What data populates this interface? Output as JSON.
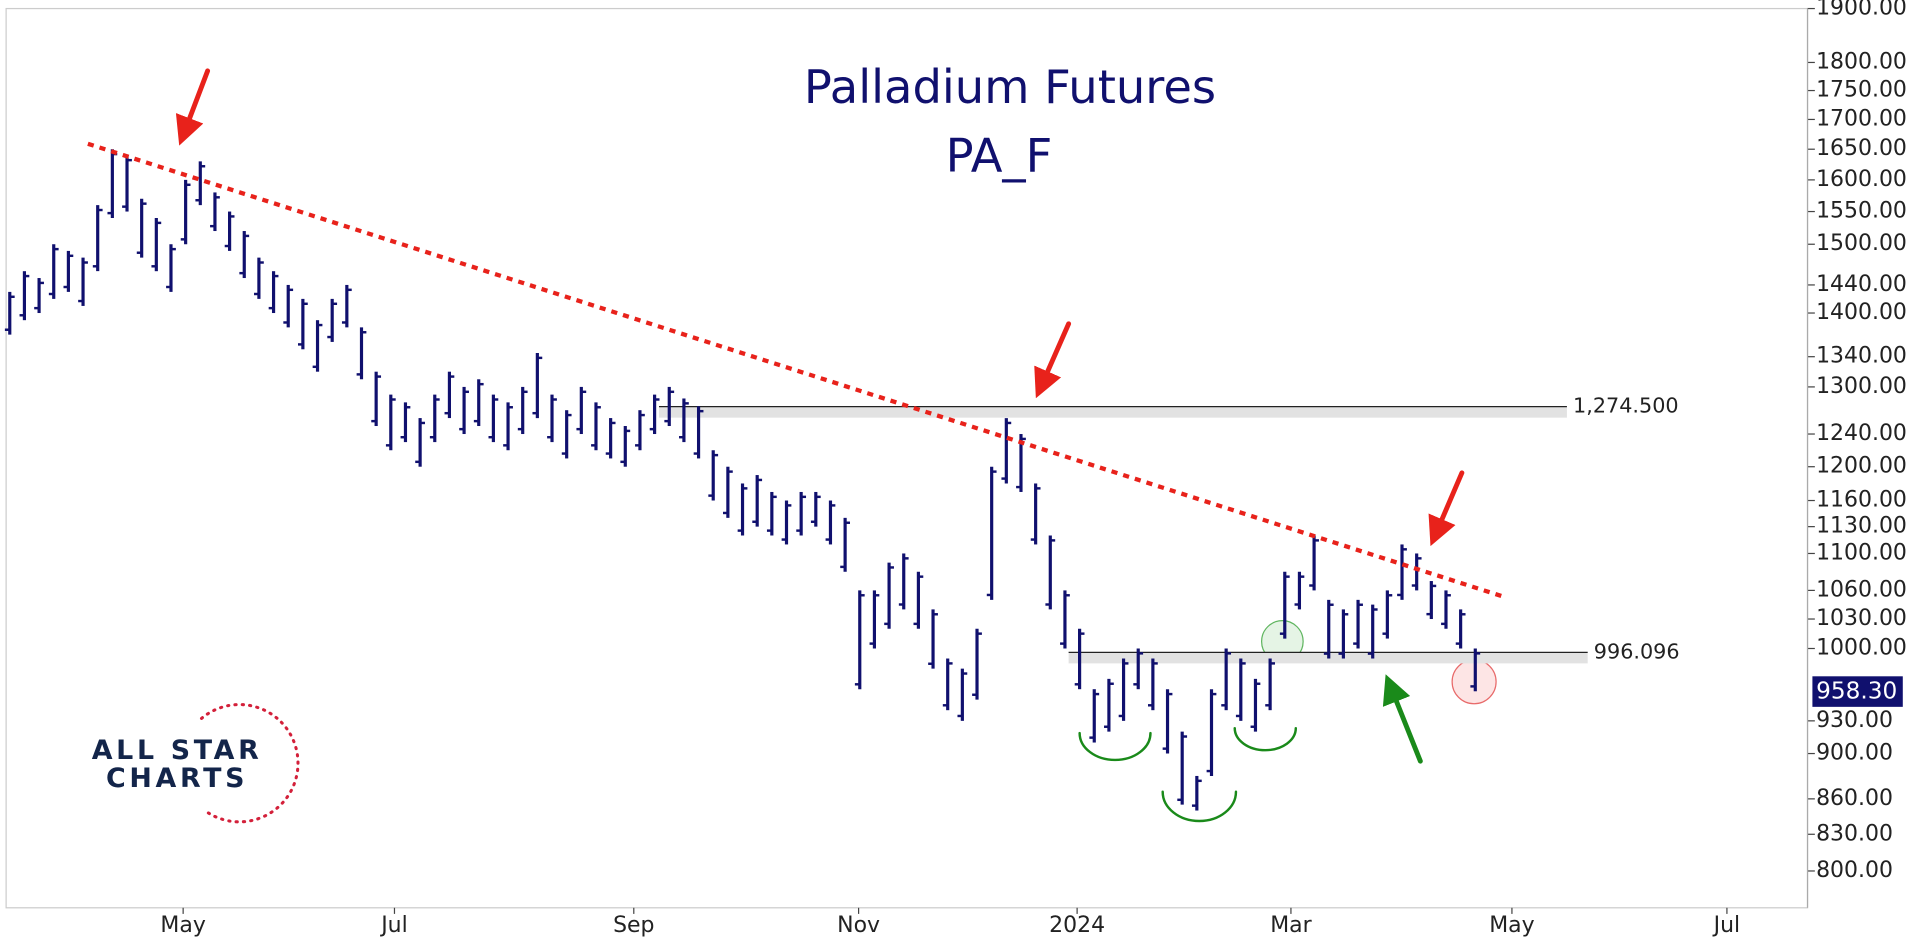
{
  "chart_data": {
    "type": "ohlc",
    "title": "Palladium Futures",
    "subtitle": "PA_F",
    "logo": [
      "ALL STAR",
      "CHARTS"
    ],
    "color": "#10106e",
    "log_scale": true,
    "xlim": [
      -0.25,
      122.67
    ],
    "xticks": [
      {
        "value": 11.83,
        "label": "May"
      },
      {
        "value": 26.25,
        "label": "Jul"
      },
      {
        "value": 42.58,
        "label": "Sep"
      },
      {
        "value": 57.92,
        "label": "Nov"
      },
      {
        "value": 72.83,
        "label": "2024"
      },
      {
        "value": 87.42,
        "label": "Mar"
      },
      {
        "value": 102.5,
        "label": "May"
      },
      {
        "value": 117.17,
        "label": "Jul"
      }
    ],
    "ylim": [
      771,
      1900
    ],
    "yticks": [
      {
        "value": 800,
        "label": "800.00"
      },
      {
        "value": 830,
        "label": "830.00"
      },
      {
        "value": 860,
        "label": "860.00"
      },
      {
        "value": 900,
        "label": "900.00"
      },
      {
        "value": 930,
        "label": "930.00"
      },
      {
        "value": 1000,
        "label": "1000.00"
      },
      {
        "value": 1030,
        "label": "1030.00"
      },
      {
        "value": 1060,
        "label": "1060.00"
      },
      {
        "value": 1100,
        "label": "1100.00"
      },
      {
        "value": 1130,
        "label": "1130.00"
      },
      {
        "value": 1160,
        "label": "1160.00"
      },
      {
        "value": 1200,
        "label": "1200.00"
      },
      {
        "value": 1240,
        "label": "1240.00"
      },
      {
        "value": 1300,
        "label": "1300.00"
      },
      {
        "value": 1340,
        "label": "1340.00"
      },
      {
        "value": 1400,
        "label": "1400.00"
      },
      {
        "value": 1440,
        "label": "1440.00"
      },
      {
        "value": 1500,
        "label": "1500.00"
      },
      {
        "value": 1550,
        "label": "1550.00"
      },
      {
        "value": 1600,
        "label": "1600.00"
      },
      {
        "value": 1650,
        "label": "1650.00"
      },
      {
        "value": 1700,
        "label": "1700.00"
      },
      {
        "value": 1750,
        "label": "1750.00"
      },
      {
        "value": 1800,
        "label": "1800.00"
      },
      {
        "value": 1900,
        "label": "1900.00"
      }
    ],
    "low": [
      1370,
      1390,
      1400,
      1420,
      1430,
      1410,
      1460,
      1540,
      1550,
      1480,
      1460,
      1430,
      1500,
      1560,
      1520,
      1490,
      1450,
      1420,
      1400,
      1380,
      1350,
      1320,
      1360,
      1380,
      1310,
      1250,
      1220,
      1230,
      1200,
      1230,
      1260,
      1240,
      1250,
      1230,
      1220,
      1240,
      1260,
      1230,
      1210,
      1240,
      1220,
      1210,
      1200,
      1220,
      1240,
      1250,
      1230,
      1210,
      1160,
      1140,
      1120,
      1130,
      1120,
      1110,
      1120,
      1130,
      1110,
      1080,
      960,
      1000,
      1020,
      1040,
      1020,
      980,
      940,
      930,
      950,
      1050,
      1180,
      1170,
      1110,
      1040,
      1000,
      960,
      910,
      920,
      930,
      960,
      940,
      900,
      855,
      850,
      880,
      940,
      930,
      920,
      940,
      1010,
      1040,
      1060,
      990,
      990,
      1000,
      990,
      1010,
      1050,
      1060,
      1030,
      1020,
      1000,
      958
    ],
    "high": [
      1430,
      1460,
      1450,
      1500,
      1490,
      1480,
      1560,
      1650,
      1640,
      1570,
      1540,
      1500,
      1600,
      1630,
      1580,
      1550,
      1520,
      1480,
      1460,
      1440,
      1420,
      1390,
      1420,
      1440,
      1380,
      1320,
      1290,
      1280,
      1260,
      1290,
      1320,
      1300,
      1310,
      1290,
      1280,
      1300,
      1345,
      1290,
      1270,
      1300,
      1280,
      1260,
      1250,
      1270,
      1290,
      1300,
      1285,
      1275,
      1220,
      1200,
      1180,
      1190,
      1170,
      1160,
      1170,
      1170,
      1160,
      1140,
      1060,
      1060,
      1090,
      1100,
      1080,
      1040,
      990,
      980,
      1020,
      1200,
      1260,
      1240,
      1180,
      1120,
      1060,
      1020,
      960,
      970,
      990,
      1000,
      990,
      960,
      920,
      880,
      960,
      1000,
      990,
      970,
      990,
      1080,
      1080,
      1120,
      1050,
      1040,
      1050,
      1045,
      1060,
      1110,
      1100,
      1070,
      1060,
      1040,
      1000
    ],
    "trendline": {
      "color": "#e8221b",
      "start": [
        5.33,
        1659
      ],
      "end": [
        102,
        1053
      ]
    },
    "levels": [
      {
        "value": 1274.5,
        "label": "1,274.500",
        "start": 44.3
      },
      {
        "value": 996.096,
        "label": "996.096",
        "start": 72.25
      }
    ],
    "last_price": {
      "value": 958.3,
      "label": "958.30"
    }
  }
}
